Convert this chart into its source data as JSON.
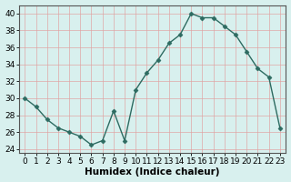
{
  "x": [
    0,
    1,
    2,
    3,
    4,
    5,
    6,
    7,
    8,
    9,
    10,
    11,
    12,
    13,
    14,
    15,
    16,
    17,
    18,
    19,
    20,
    21,
    22,
    23
  ],
  "y": [
    30,
    29,
    27.5,
    26.5,
    26,
    25.5,
    24.5,
    25,
    28.5,
    25,
    31,
    33,
    34.5,
    36.5,
    37.5,
    40,
    39.5,
    39.5,
    38.5,
    37.5,
    35.5,
    33.5,
    32.5,
    26.5
  ],
  "xlabel": "Humidex (Indice chaleur)",
  "xlim": [
    -0.5,
    23.5
  ],
  "ylim": [
    23.5,
    41
  ],
  "yticks": [
    24,
    26,
    28,
    30,
    32,
    34,
    36,
    38,
    40
  ],
  "xtick_labels": [
    "0",
    "1",
    "2",
    "3",
    "4",
    "5",
    "6",
    "7",
    "8",
    "9",
    "10",
    "11",
    "12",
    "13",
    "14",
    "15",
    "16",
    "17",
    "18",
    "19",
    "20",
    "21",
    "22",
    "23"
  ],
  "line_color": "#2d6b61",
  "marker_color": "#2d6b61",
  "bg_color": "#d8f0ee",
  "grid_color_major": "#c0d8d8",
  "grid_color_minor": "#e8b8b8",
  "label_fontsize": 7.5,
  "tick_fontsize": 6.5
}
